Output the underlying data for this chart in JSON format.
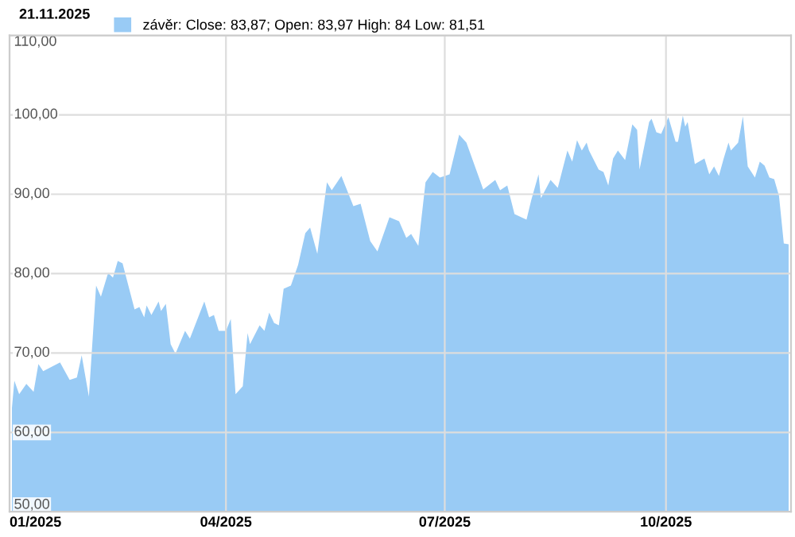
{
  "chart_data": {
    "type": "area",
    "annotations": [
      "21.11.2025"
    ],
    "x": [
      "2025-01-02",
      "2025-01-03",
      "2025-01-05",
      "2025-01-08",
      "2025-01-11",
      "2025-01-13",
      "2025-01-15",
      "2025-01-22",
      "2025-01-26",
      "2025-01-29",
      "2025-01-31",
      "2025-02-03",
      "2025-02-06",
      "2025-02-08",
      "2025-02-11",
      "2025-02-13",
      "2025-02-15",
      "2025-02-17",
      "2025-02-22",
      "2025-02-24",
      "2025-02-26",
      "2025-02-27",
      "2025-03-01",
      "2025-03-04",
      "2025-03-05",
      "2025-03-07",
      "2025-03-09",
      "2025-03-11",
      "2025-03-15",
      "2025-03-17",
      "2025-03-23",
      "2025-03-25",
      "2025-03-27",
      "2025-03-29",
      "2025-04-01",
      "2025-04-03",
      "2025-04-05",
      "2025-04-08",
      "2025-04-10",
      "2025-04-11",
      "2025-04-15",
      "2025-04-17",
      "2025-04-19",
      "2025-04-21",
      "2025-04-23",
      "2025-04-25",
      "2025-04-28",
      "2025-05-01",
      "2025-05-04",
      "2025-05-06",
      "2025-05-09",
      "2025-05-13",
      "2025-05-15",
      "2025-05-19",
      "2025-05-24",
      "2025-05-27",
      "2025-05-31",
      "2025-06-03",
      "2025-06-08",
      "2025-06-12",
      "2025-06-15",
      "2025-06-17",
      "2025-06-20",
      "2025-06-23",
      "2025-06-26",
      "2025-06-29",
      "2025-07-03",
      "2025-07-07",
      "2025-07-10",
      "2025-07-17",
      "2025-07-22",
      "2025-07-24",
      "2025-07-27",
      "2025-07-30",
      "2025-08-04",
      "2025-08-06",
      "2025-08-09",
      "2025-08-10",
      "2025-08-14",
      "2025-08-17",
      "2025-08-21",
      "2025-08-23",
      "2025-08-25",
      "2025-08-27",
      "2025-08-29",
      "2025-08-30",
      "2025-09-03",
      "2025-09-05",
      "2025-09-07",
      "2025-09-09",
      "2025-09-11",
      "2025-09-14",
      "2025-09-17",
      "2025-09-19",
      "2025-09-20",
      "2025-09-24",
      "2025-09-25",
      "2025-09-27",
      "2025-09-29",
      "2025-10-02",
      "2025-10-05",
      "2025-10-06",
      "2025-10-08",
      "2025-10-09",
      "2025-10-10",
      "2025-10-13",
      "2025-10-17",
      "2025-10-19",
      "2025-10-21",
      "2025-10-23",
      "2025-10-25",
      "2025-10-27",
      "2025-10-28",
      "2025-10-31",
      "2025-11-02",
      "2025-11-04",
      "2025-11-07",
      "2025-11-09",
      "2025-11-11",
      "2025-11-13",
      "2025-11-15",
      "2025-11-17",
      "2025-11-19",
      "2025-11-21"
    ],
    "series": [
      {
        "name": "závěr: Close: 83,87; Open: 83,97 High: 84 Low: 81,51",
        "color": "#99cbf5",
        "values": [
          63.1,
          66.5,
          64.8,
          66.1,
          65.1,
          68.6,
          67.7,
          68.8,
          66.6,
          66.9,
          69.7,
          64.5,
          78.5,
          77.1,
          80.1,
          79.5,
          81.6,
          81.3,
          75.5,
          75.8,
          74.5,
          76,
          74.8,
          76.5,
          75.3,
          76.2,
          71.1,
          69.9,
          72.8,
          71.8,
          76.5,
          74.5,
          74.8,
          72.8,
          72.8,
          74.3,
          64.8,
          65.8,
          72.5,
          71.1,
          73.5,
          72.8,
          75.1,
          73.8,
          73.5,
          78.1,
          78.5,
          81.1,
          85.1,
          85.8,
          82.5,
          91.5,
          90.5,
          92.3,
          88.5,
          88.8,
          84.1,
          82.8,
          87.1,
          86.6,
          84.5,
          85,
          83.5,
          91.5,
          92.8,
          92.1,
          92.5,
          97.5,
          96.5,
          90.6,
          91.8,
          90.5,
          91.1,
          87.5,
          86.8,
          89.3,
          92.5,
          89.5,
          91.8,
          90.8,
          95.5,
          94.1,
          96.8,
          95.5,
          96.5,
          95.5,
          93.1,
          92.8,
          91.1,
          94.5,
          95.5,
          94.3,
          98.8,
          98.1,
          93.1,
          99.1,
          99.5,
          97.8,
          97.6,
          99.7,
          96.6,
          96.6,
          99.9,
          98.5,
          99.1,
          93.8,
          94.5,
          92.5,
          93.5,
          92.3,
          94.5,
          96.5,
          95.5,
          96.5,
          99.8,
          93.5,
          92.1,
          94.1,
          93.6,
          92.1,
          91.9,
          89.8,
          83.8,
          83.7
        ]
      }
    ],
    "xlim": [
      "2025-01-01",
      "2025-11-22"
    ],
    "xticks": [
      {
        "value": "2025-01-01",
        "label": "01/2025"
      },
      {
        "value": "2025-04-01",
        "label": "04/2025"
      },
      {
        "value": "2025-07-01",
        "label": "07/2025"
      },
      {
        "value": "2025-10-01",
        "label": "10/2025"
      }
    ],
    "ylim": [
      50,
      110
    ],
    "yticks": [
      {
        "value": 50,
        "label": "50,00"
      },
      {
        "value": 60,
        "label": "60,00"
      },
      {
        "value": 70,
        "label": "70,00"
      },
      {
        "value": 80,
        "label": "80,00"
      },
      {
        "value": 90,
        "label": "90,00"
      },
      {
        "value": 100,
        "label": "100,00"
      },
      {
        "value": 110,
        "label": "110,00"
      }
    ],
    "grid": true,
    "legend": "top left"
  }
}
